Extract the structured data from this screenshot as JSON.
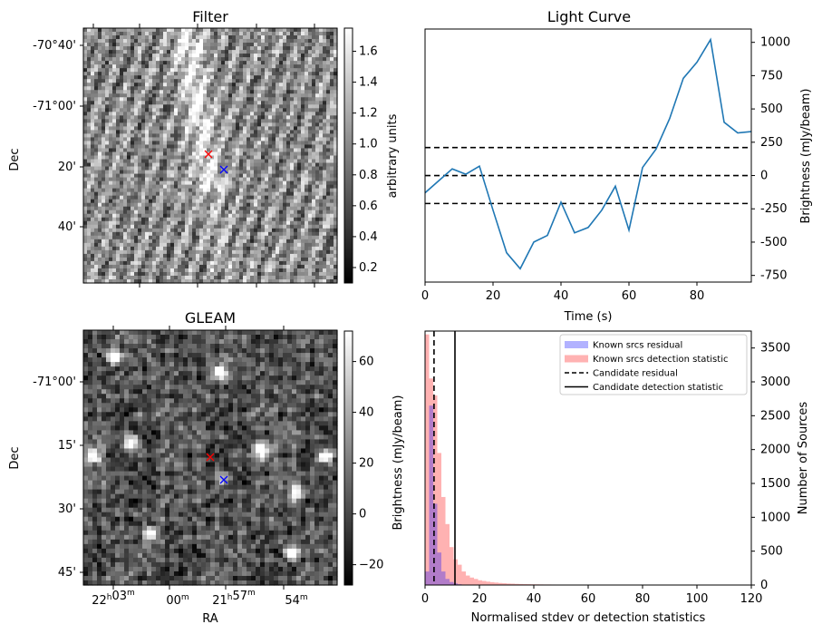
{
  "chart_data": [
    {
      "type": "heatmap",
      "title": "Filter",
      "xlabel": "",
      "ylabel": "Dec",
      "yticklabels": [
        "-70°40'",
        "-71°00'",
        "20'",
        "40'"
      ],
      "colorbar": {
        "label": "arbitrary units",
        "ticks": [
          "0.2",
          "0.4",
          "0.6",
          "0.8",
          "1.0",
          "1.2",
          "1.4",
          "1.6"
        ],
        "range": [
          0.1,
          1.75
        ],
        "colormap": "gray"
      },
      "markers": [
        {
          "symbol": "x",
          "color": "#ff0000"
        },
        {
          "symbol": "x",
          "color": "#0000ff"
        }
      ]
    },
    {
      "type": "line",
      "title": "Light Curve",
      "xlabel": "Time (s)",
      "ylabel": "Brightness (mJy/beam)",
      "xlim": [
        0,
        96
      ],
      "ylim": [
        -800,
        1100
      ],
      "xticks": [
        0,
        20,
        40,
        60,
        80
      ],
      "yticks": [
        -750,
        -500,
        -250,
        0,
        250,
        500,
        750,
        1000
      ],
      "y_axis_side": "right",
      "series": [
        {
          "color": "#1f77b4",
          "x": [
            0,
            4,
            8,
            12,
            16,
            20,
            24,
            28,
            32,
            36,
            40,
            44,
            48,
            52,
            56,
            60,
            64,
            68,
            72,
            76,
            80,
            84,
            88,
            92,
            96
          ],
          "y": [
            -130,
            -40,
            50,
            10,
            70,
            -260,
            -580,
            -700,
            -500,
            -450,
            -200,
            -430,
            -390,
            -260,
            -80,
            -410,
            60,
            200,
            430,
            730,
            850,
            1020,
            400,
            320,
            330
          ]
        }
      ],
      "hlines": [
        {
          "y": 210,
          "style": "dashed",
          "color": "#000000"
        },
        {
          "y": 0,
          "style": "dashed",
          "color": "#000000"
        },
        {
          "y": -210,
          "style": "dashed",
          "color": "#000000"
        }
      ]
    },
    {
      "type": "heatmap",
      "title": "GLEAM",
      "xlabel": "RA",
      "ylabel": "Dec",
      "xticklabels": [
        "22h03m",
        "00m",
        "21h57m",
        "54m"
      ],
      "yticklabels": [
        "-71°00'",
        "15'",
        "30'",
        "45'"
      ],
      "colorbar": {
        "label": "Brightness (mJy/beam)",
        "ticks": [
          "-20",
          "0",
          "20",
          "40",
          "60"
        ],
        "range": [
          -28,
          72
        ],
        "colormap": "gray"
      },
      "markers": [
        {
          "symbol": "x",
          "color": "#ff0000"
        },
        {
          "symbol": "x",
          "color": "#0000ff"
        }
      ]
    },
    {
      "type": "bar",
      "subtype": "histogram",
      "title": "",
      "xlabel": "Normalised stdev or detection statistics",
      "ylabel": "Number of Sources",
      "y_axis_side": "right",
      "xlim": [
        0,
        120
      ],
      "ylim": [
        0,
        3750
      ],
      "xticks": [
        0,
        20,
        40,
        60,
        80,
        100,
        120
      ],
      "yticks": [
        0,
        500,
        1000,
        1500,
        2000,
        2500,
        3000,
        3500
      ],
      "bin_width": 1.5,
      "legend_position": "top-right",
      "series": [
        {
          "name": "Known srcs residual",
          "color": "#0000ff",
          "alpha": 0.3,
          "values": [
            200,
            2650,
            1200,
            480,
            200,
            90,
            45,
            25,
            12,
            6,
            3,
            2
          ]
        },
        {
          "name": "Known srcs detection statistic",
          "color": "#ff0000",
          "alpha": 0.3,
          "values": [
            3700,
            3050,
            2800,
            1950,
            1300,
            900,
            560,
            380,
            300,
            200,
            140,
            110,
            90,
            70,
            60,
            50,
            42,
            36,
            30,
            26,
            22,
            20,
            17,
            15,
            13,
            12,
            11,
            10,
            9,
            8,
            8,
            7,
            6,
            6,
            5,
            5,
            5,
            4,
            4,
            4,
            4,
            3,
            3,
            3,
            3,
            3,
            3,
            2,
            2,
            2,
            2,
            2,
            2,
            2,
            2,
            2,
            2,
            2,
            2,
            2,
            2,
            2,
            2,
            2,
            2,
            2,
            2,
            2,
            2,
            2,
            2,
            2,
            2,
            2,
            2,
            2,
            2,
            2,
            2,
            2
          ]
        }
      ],
      "vlines": [
        {
          "name": "Candidate residual",
          "x": 3.3,
          "style": "dashed",
          "color": "#000000"
        },
        {
          "name": "Candidate detection statistic",
          "x": 11,
          "style": "solid",
          "color": "#000000"
        }
      ],
      "extra_label": "Brightness (mJy/beam)"
    }
  ]
}
